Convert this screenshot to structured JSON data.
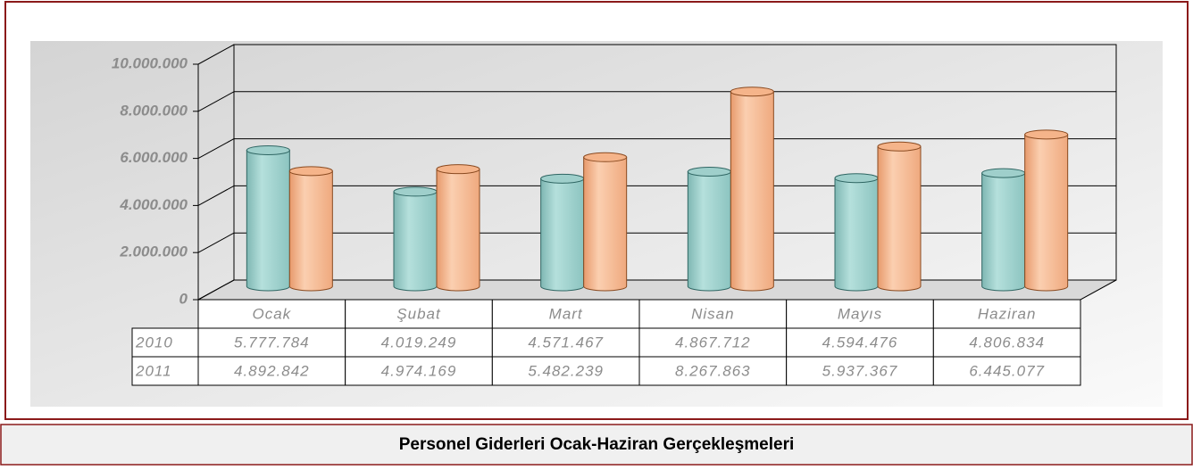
{
  "chart_data": {
    "type": "bar",
    "title": "Personel Giderleri Ocak-Haziran Gerçekleşmeleri",
    "categories": [
      "Ocak",
      "Şubat",
      "Mart",
      "Nisan",
      "Mayıs",
      "Haziran"
    ],
    "series": [
      {
        "name": "2010",
        "color": "#9fcfcb",
        "values": [
          5777784,
          4019249,
          4571467,
          4867712,
          4594476,
          4806834
        ],
        "value_labels": [
          "5.777.784",
          "4.019.249",
          "4.571.467",
          "4.867.712",
          "4.594.476",
          "4.806.834"
        ]
      },
      {
        "name": "2011",
        "color": "#f5b48a",
        "values": [
          4892842,
          4974169,
          5482239,
          8267863,
          5937367,
          6445077
        ],
        "value_labels": [
          "4.892.842",
          "4.974.169",
          "5.482.239",
          "8.267.863",
          "5.937.367",
          "6.445.077"
        ]
      }
    ],
    "ylim": [
      0,
      10000000
    ],
    "yticks": [
      0,
      {
        "value": 2000000,
        "label": "2.000.000"
      },
      {
        "value": 4000000,
        "label": "4.000.000"
      },
      {
        "value": 6000000,
        "label": "6.000.000"
      },
      {
        "value": 8000000,
        "label": "8.000.000"
      },
      {
        "value": 10000000,
        "label": "10.000.000"
      }
    ],
    "grid": true
  }
}
